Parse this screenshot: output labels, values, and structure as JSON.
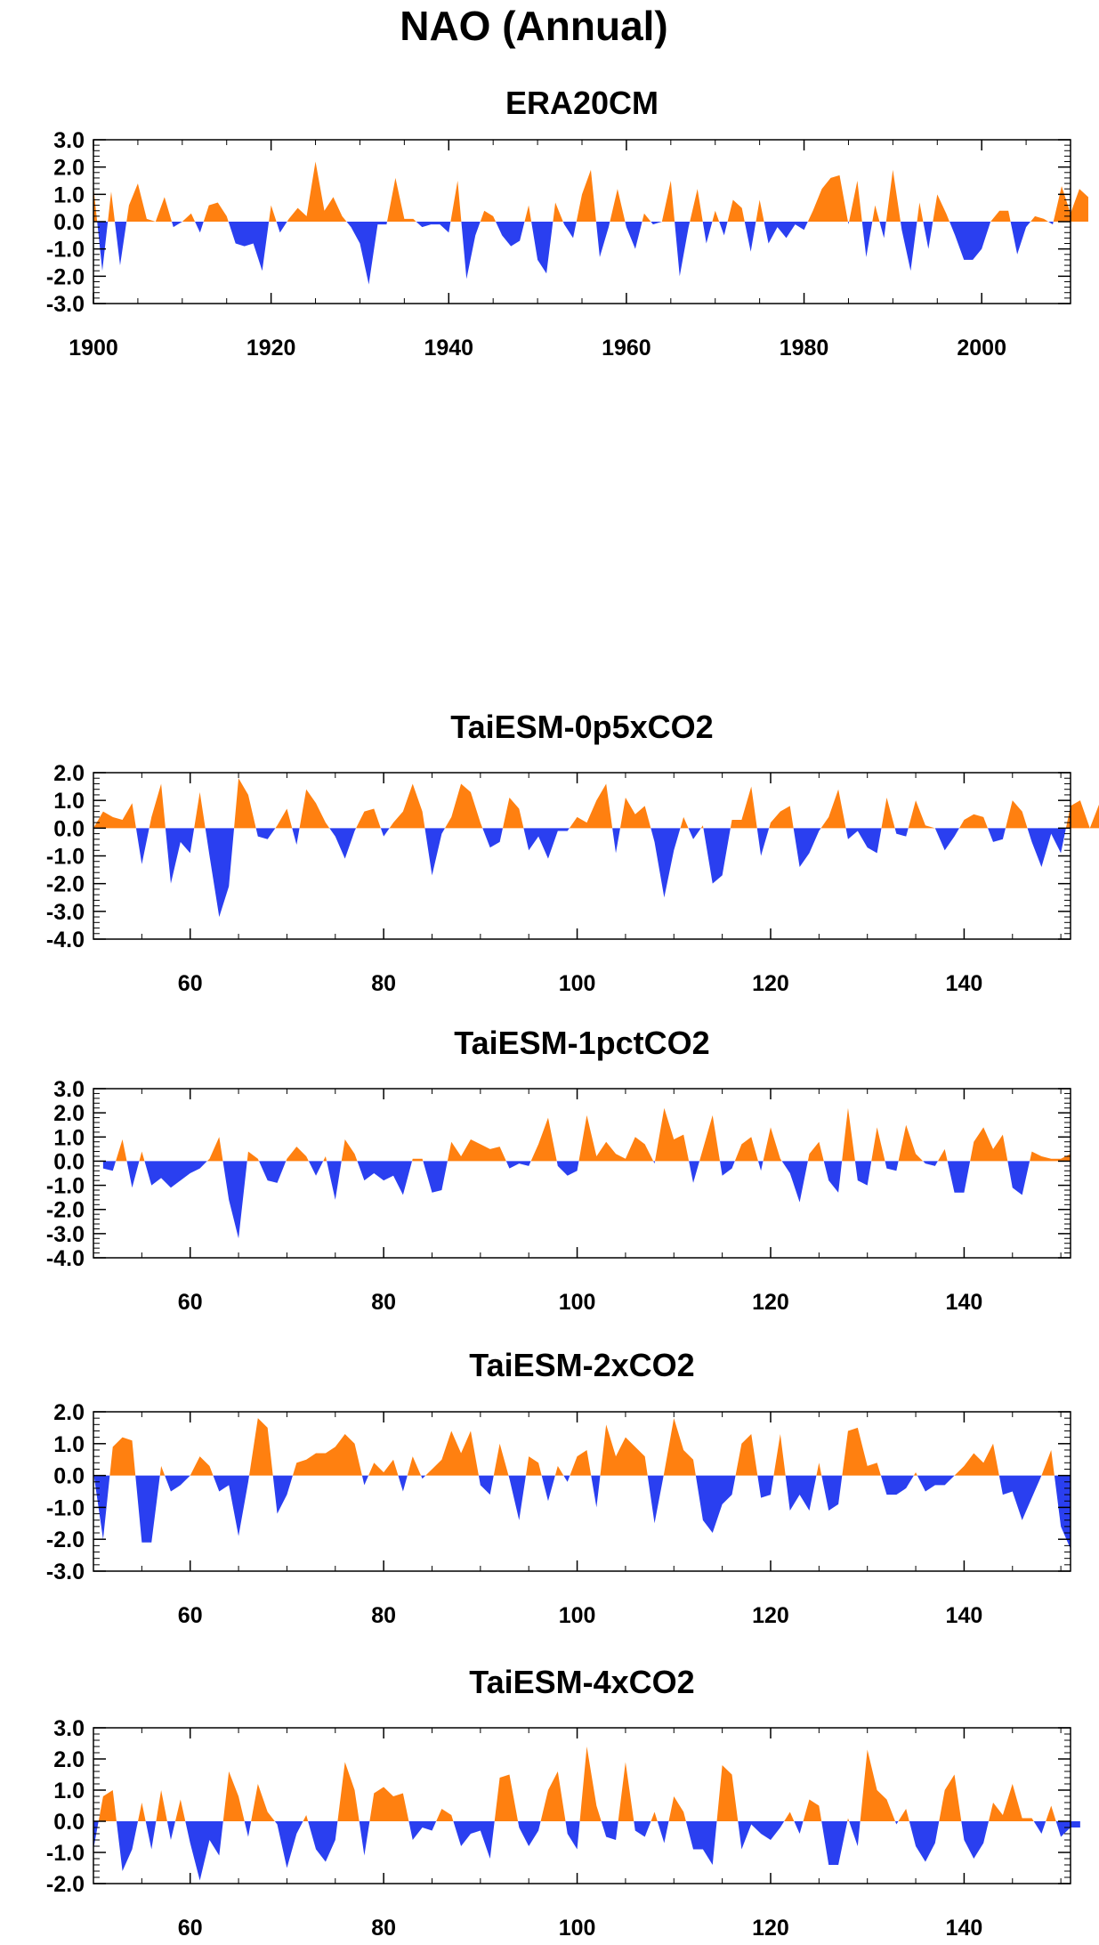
{
  "title": "NAO (Annual)",
  "colors": {
    "positive": "#FF8010",
    "negative": "#2A3FF0",
    "frame": "#000000"
  },
  "chart_data": [
    {
      "type": "area",
      "title": "ERA20CM",
      "xlim": [
        1900,
        2010
      ],
      "ylim": [
        -3.0,
        3.0
      ],
      "yticks": [
        "3.0",
        "2.0",
        "1.0",
        "0.0",
        "-1.0",
        "-2.0",
        "-3.0"
      ],
      "yticks_values": [
        3,
        2,
        1,
        0,
        -1,
        -2,
        -3
      ],
      "xticks": [
        1900,
        1920,
        1940,
        1960,
        1980,
        2000
      ],
      "x_start": 1900,
      "values": [
        1.3,
        -1.8,
        1.1,
        -1.6,
        0.6,
        1.4,
        0.1,
        0.0,
        0.9,
        -0.2,
        0.0,
        0.3,
        -0.4,
        0.6,
        0.7,
        0.2,
        -0.8,
        -0.9,
        -0.8,
        -1.8,
        0.6,
        -0.4,
        0.1,
        0.5,
        0.2,
        2.2,
        0.4,
        0.9,
        0.2,
        -0.2,
        -0.8,
        -2.3,
        -0.1,
        -0.1,
        1.6,
        0.1,
        0.1,
        -0.2,
        -0.1,
        -0.1,
        -0.4,
        1.5,
        -2.1,
        -0.5,
        0.4,
        0.2,
        -0.5,
        -0.9,
        -0.7,
        0.6,
        -1.4,
        -1.9,
        0.7,
        -0.1,
        -0.6,
        1.0,
        1.9,
        -1.3,
        -0.2,
        1.2,
        -0.2,
        -1.0,
        0.3,
        -0.1,
        0.0,
        1.5,
        -2.0,
        -0.2,
        1.2,
        -0.8,
        0.4,
        -0.5,
        0.8,
        0.5,
        -1.1,
        0.8,
        -0.8,
        -0.2,
        -0.6,
        -0.1,
        -0.3,
        0.4,
        1.2,
        1.6,
        1.7,
        -0.1,
        1.5,
        -1.3,
        0.6,
        -0.6,
        1.9,
        -0.3,
        -1.8,
        0.7,
        -1.0,
        1.0,
        0.3,
        -0.5,
        -1.4,
        -1.4,
        -1.0,
        0.0,
        0.4,
        0.4,
        -1.2,
        -0.2,
        0.2,
        0.1,
        -0.1,
        1.3,
        0.3,
        1.2,
        0.9
      ]
    },
    {
      "type": "area",
      "title": "TaiESM-0p5xCO2",
      "xlim": [
        50,
        151
      ],
      "ylim": [
        -4.0,
        2.0
      ],
      "yticks": [
        "2.0",
        "1.0",
        "0.0",
        "-1.0",
        "-2.0",
        "-3.0",
        "-4.0"
      ],
      "yticks_values": [
        2,
        1,
        0,
        -1,
        -2,
        -3,
        -4
      ],
      "xticks": [
        60,
        80,
        100,
        120,
        140
      ],
      "x_start": 50,
      "values": [
        0.0,
        0.6,
        0.4,
        0.3,
        0.9,
        -1.3,
        0.4,
        1.6,
        -2.0,
        -0.5,
        -0.9,
        1.3,
        -1.0,
        -3.2,
        -2.1,
        1.8,
        1.2,
        -0.3,
        -0.4,
        0.1,
        0.7,
        -0.6,
        1.4,
        0.9,
        0.2,
        -0.3,
        -1.1,
        -0.1,
        0.6,
        0.7,
        -0.3,
        0.2,
        0.6,
        1.6,
        0.6,
        -1.7,
        -0.2,
        0.4,
        1.6,
        1.3,
        0.2,
        -0.7,
        -0.5,
        1.1,
        0.7,
        -0.8,
        -0.3,
        -1.1,
        -0.1,
        -0.1,
        0.4,
        0.2,
        1.0,
        1.6,
        -0.9,
        1.1,
        0.5,
        0.8,
        -0.5,
        -2.5,
        -0.8,
        0.4,
        -0.4,
        0.1,
        -2.0,
        -1.7,
        0.3,
        0.3,
        1.5,
        -1.0,
        0.2,
        0.6,
        0.8,
        -1.4,
        -0.9,
        -0.1,
        0.4,
        1.4,
        -0.4,
        -0.1,
        -0.7,
        -0.9,
        1.1,
        -0.2,
        -0.3,
        1.0,
        0.1,
        0.0,
        -0.8,
        -0.3,
        0.3,
        0.5,
        0.4,
        -0.5,
        -0.4,
        1.0,
        0.6,
        -0.5,
        -1.4,
        -0.2,
        -0.9,
        0.8,
        1.0,
        0.0,
        0.9
      ]
    },
    {
      "type": "area",
      "title": "TaiESM-1pctCO2",
      "xlim": [
        50,
        151
      ],
      "ylim": [
        -4.0,
        3.0
      ],
      "yticks": [
        "3.0",
        "2.0",
        "1.0",
        "0.0",
        "-1.0",
        "-2.0",
        "-3.0",
        "-4.0"
      ],
      "yticks_values": [
        3,
        2,
        1,
        0,
        -1,
        -2,
        -3,
        -4
      ],
      "xticks": [
        60,
        80,
        100,
        120,
        140
      ],
      "x_start": 51,
      "values": [
        -0.3,
        -0.4,
        0.9,
        -1.1,
        0.4,
        -1.0,
        -0.7,
        -1.1,
        -0.8,
        -0.5,
        -0.3,
        0.1,
        1.0,
        -1.6,
        -3.2,
        0.4,
        0.1,
        -0.8,
        -0.9,
        0.1,
        0.6,
        0.2,
        -0.6,
        0.2,
        -1.6,
        0.9,
        0.3,
        -0.8,
        -0.5,
        -0.8,
        -0.6,
        -1.4,
        0.1,
        0.1,
        -1.3,
        -1.2,
        0.8,
        0.2,
        0.9,
        0.7,
        0.5,
        0.6,
        -0.3,
        -0.1,
        -0.2,
        0.7,
        1.8,
        -0.2,
        -0.6,
        -0.4,
        1.9,
        0.2,
        0.8,
        0.3,
        0.1,
        1.0,
        0.7,
        -0.1,
        2.2,
        0.9,
        1.1,
        -0.9,
        0.5,
        1.9,
        -0.6,
        -0.3,
        0.7,
        1.0,
        -0.4,
        1.4,
        0.1,
        -0.5,
        -1.7,
        0.3,
        0.8,
        -0.8,
        -1.3,
        2.2,
        -0.8,
        -1.0,
        1.4,
        -0.3,
        -0.4,
        1.5,
        0.3,
        -0.1,
        -0.2,
        0.5,
        -1.3,
        -1.3,
        0.8,
        1.4,
        0.5,
        1.1,
        -1.1,
        -1.4,
        0.4,
        0.2,
        0.1,
        0.1,
        0.3
      ]
    },
    {
      "type": "area",
      "title": "TaiESM-2xCO2",
      "xlim": [
        50,
        151
      ],
      "ylim": [
        -3.0,
        2.0
      ],
      "yticks": [
        "2.0",
        "1.0",
        "0.0",
        "-1.0",
        "-2.0",
        "-3.0"
      ],
      "yticks_values": [
        2,
        1,
        0,
        -1,
        -2,
        -3
      ],
      "xticks": [
        60,
        80,
        100,
        120,
        140
      ],
      "x_start": 50,
      "values": [
        0.1,
        -2.0,
        0.9,
        1.2,
        1.1,
        -2.1,
        -2.1,
        0.3,
        -0.5,
        -0.3,
        0.0,
        0.6,
        0.3,
        -0.5,
        -0.3,
        -1.9,
        -0.2,
        1.8,
        1.5,
        -1.2,
        -0.6,
        0.4,
        0.5,
        0.7,
        0.7,
        0.9,
        1.3,
        1.0,
        -0.3,
        0.4,
        0.1,
        0.5,
        -0.5,
        0.6,
        -0.1,
        0.2,
        0.5,
        1.4,
        0.7,
        1.4,
        -0.3,
        -0.6,
        1.0,
        -0.1,
        -1.4,
        0.6,
        0.4,
        -0.8,
        0.3,
        -0.2,
        0.6,
        0.8,
        -1.0,
        1.6,
        0.6,
        1.2,
        0.9,
        0.6,
        -1.5,
        0.1,
        1.8,
        0.8,
        0.5,
        -1.4,
        -1.8,
        -0.9,
        -0.6,
        1.0,
        1.3,
        -0.7,
        -0.6,
        1.3,
        -1.1,
        -0.6,
        -1.1,
        0.4,
        -1.1,
        -0.9,
        1.4,
        1.5,
        0.3,
        0.4,
        -0.6,
        -0.6,
        -0.4,
        0.1,
        -0.5,
        -0.3,
        -0.3,
        0.0,
        0.3,
        0.7,
        0.4,
        1.0,
        -0.6,
        -0.5,
        -1.4,
        -0.7,
        0.0,
        0.8,
        -1.6,
        -2.3
      ]
    },
    {
      "type": "area",
      "title": "TaiESM-4xCO2",
      "xlim": [
        50,
        151
      ],
      "ylim": [
        -2.0,
        3.0
      ],
      "yticks": [
        "3.0",
        "2.0",
        "1.0",
        "0.0",
        "-1.0",
        "-2.0"
      ],
      "yticks_values": [
        3,
        2,
        1,
        0,
        -1,
        -2
      ],
      "xticks": [
        60,
        80,
        100,
        120,
        140
      ],
      "x_start": 50,
      "values": [
        -0.9,
        0.8,
        1.0,
        -1.6,
        -0.9,
        0.6,
        -0.9,
        1.0,
        -0.6,
        0.7,
        -0.7,
        -1.9,
        -0.6,
        -1.1,
        1.6,
        0.8,
        -0.5,
        1.2,
        0.3,
        -0.1,
        -1.5,
        -0.4,
        0.2,
        -0.9,
        -1.3,
        -0.6,
        1.9,
        1.0,
        -1.1,
        0.9,
        1.1,
        0.8,
        0.9,
        -0.6,
        -0.2,
        -0.3,
        0.4,
        0.2,
        -0.8,
        -0.4,
        -0.3,
        -1.2,
        1.4,
        1.5,
        -0.2,
        -0.8,
        -0.3,
        1.0,
        1.6,
        -0.4,
        -0.9,
        2.4,
        0.5,
        -0.5,
        -0.6,
        1.9,
        -0.3,
        -0.5,
        0.3,
        -0.7,
        0.8,
        0.3,
        -0.9,
        -0.9,
        -1.4,
        1.8,
        1.5,
        -0.9,
        -0.1,
        -0.4,
        -0.6,
        -0.2,
        0.3,
        -0.4,
        0.7,
        0.5,
        -1.4,
        -1.4,
        0.1,
        -0.8,
        2.3,
        1.0,
        0.7,
        -0.1,
        0.4,
        -0.8,
        -1.3,
        -0.7,
        1.0,
        1.5,
        -0.6,
        -1.2,
        -0.7,
        0.6,
        0.2,
        1.2,
        0.1,
        0.1,
        -0.4,
        0.5,
        -0.5,
        -0.2,
        -0.2
      ]
    }
  ]
}
